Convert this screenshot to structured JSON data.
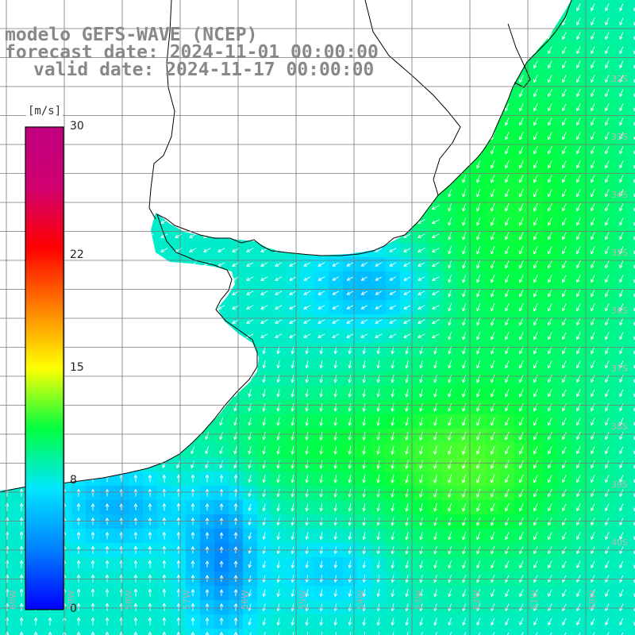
{
  "header": {
    "line1": "modelo GEFS-WAVE (NCEP)",
    "line2": "forecast date: 2024-11-01 00:00:00",
    "line3": "valid date: 2024-11-17 00:00:00"
  },
  "colorbar": {
    "unit": "[m/s]",
    "ticks": [
      {
        "value": 30,
        "label": "30"
      },
      {
        "value": 22,
        "label": "22"
      },
      {
        "value": 15,
        "label": "15"
      },
      {
        "value": 8,
        "label": "8"
      },
      {
        "value": 0,
        "label": "0"
      }
    ],
    "range": [
      0,
      30
    ],
    "colors": [
      "#0000ff",
      "#0080ff",
      "#00e6ff",
      "#00ff40",
      "#ffff00",
      "#ff8000",
      "#ff0000",
      "#d00070",
      "#c00080"
    ]
  },
  "map": {
    "land_color": "#ffffff",
    "grid_color": "#777777",
    "coast_color": "#000000",
    "arrow_color": "#ffffff",
    "lon_labels": [
      "60W",
      "59W",
      "58W",
      "57W",
      "56W",
      "55W",
      "54W",
      "53W",
      "52W",
      "51W",
      "50W"
    ],
    "lat_labels": [
      "32S",
      "33S",
      "34S",
      "35S",
      "36S",
      "37S",
      "38S",
      "39S",
      "40S"
    ]
  }
}
